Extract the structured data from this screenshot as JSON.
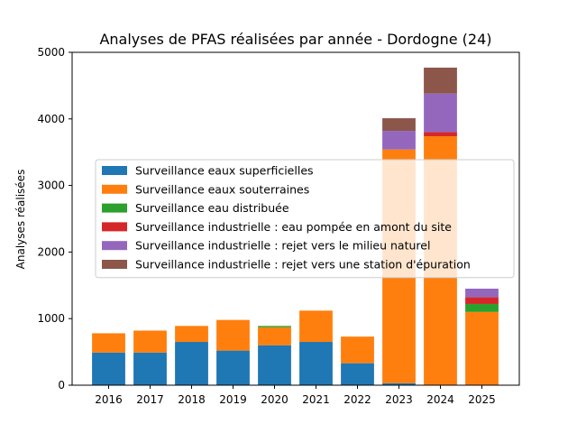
{
  "chart_data": {
    "type": "bar",
    "stacked": true,
    "title": "Analyses de PFAS réalisées par année - Dordogne (24)",
    "xlabel": "",
    "ylabel": "Analyses réalisées",
    "ylim": [
      0,
      5000
    ],
    "yticks": [
      0,
      1000,
      2000,
      3000,
      4000,
      5000
    ],
    "yticklabels": [
      "0",
      "1000",
      "2000",
      "3000",
      "4000",
      "5000"
    ],
    "categories": [
      "2016",
      "2017",
      "2018",
      "2019",
      "2020",
      "2021",
      "2022",
      "2023",
      "2024",
      "2025"
    ],
    "legend_position": "center-left",
    "series": [
      {
        "name": "Surveillance eaux superficielles",
        "color": "#1f77b4",
        "values": [
          490,
          490,
          650,
          520,
          600,
          650,
          330,
          30,
          0,
          0
        ]
      },
      {
        "name": "Surveillance eaux souterraines",
        "color": "#ff7f0e",
        "values": [
          290,
          330,
          240,
          460,
          270,
          470,
          400,
          3510,
          3740,
          1100
        ]
      },
      {
        "name": "Surveillance eau distribuée",
        "color": "#2ca02c",
        "values": [
          0,
          0,
          0,
          0,
          20,
          0,
          0,
          0,
          0,
          120
        ]
      },
      {
        "name": "Surveillance industrielle : eau pompée en amont du site",
        "color": "#d62728",
        "values": [
          0,
          0,
          0,
          0,
          0,
          0,
          0,
          0,
          60,
          100
        ]
      },
      {
        "name": "Surveillance industrielle : rejet vers le milieu naturel",
        "color": "#9467bd",
        "values": [
          0,
          0,
          0,
          0,
          0,
          0,
          0,
          280,
          580,
          130
        ]
      },
      {
        "name": "Surveillance industrielle : rejet vers une station d'épuration",
        "color": "#8c564b",
        "values": [
          0,
          0,
          0,
          0,
          0,
          0,
          0,
          190,
          390,
          0
        ]
      }
    ]
  }
}
